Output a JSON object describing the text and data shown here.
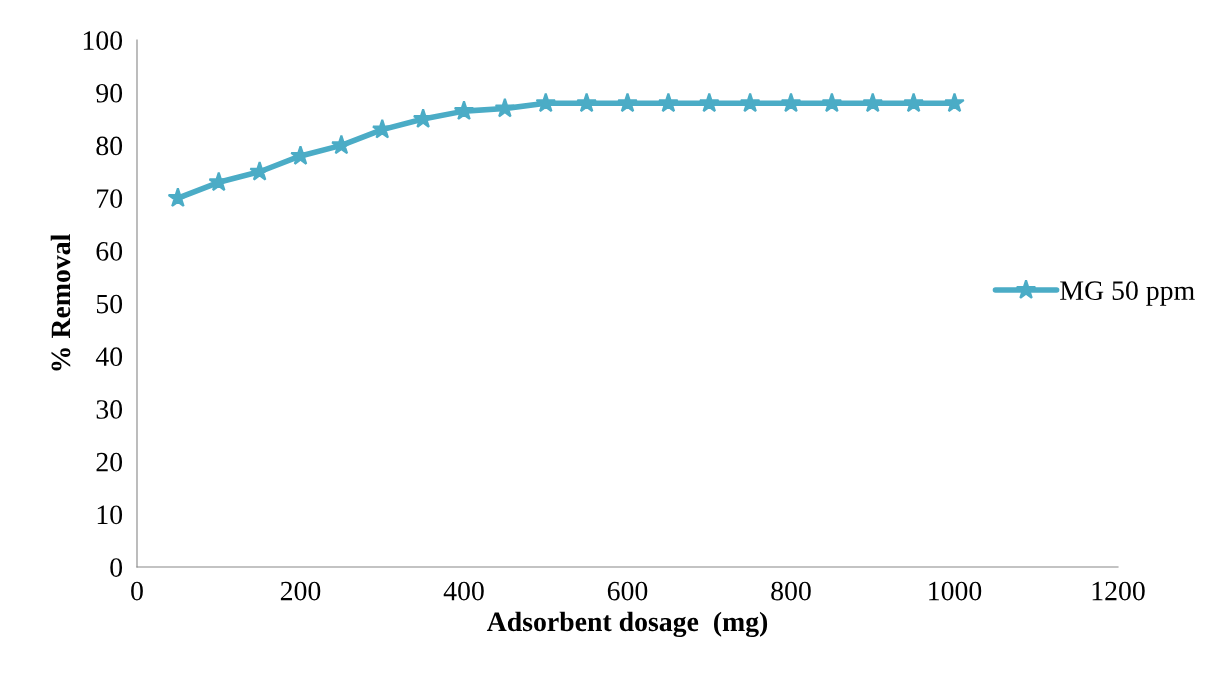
{
  "chart_data": {
    "type": "line",
    "xlabel": "Adsorbent dosage  (mg)",
    "ylabel": "% Removal",
    "x": [
      50,
      100,
      150,
      200,
      250,
      300,
      350,
      400,
      450,
      500,
      550,
      600,
      650,
      700,
      750,
      800,
      850,
      900,
      950,
      1000
    ],
    "series": [
      {
        "name": "MG 50 ppm",
        "color": "#4bacc6",
        "values": [
          70,
          73,
          75,
          78,
          80,
          83,
          85,
          86.5,
          87,
          88,
          88,
          88,
          88,
          88,
          88,
          88,
          88,
          88,
          88,
          88
        ]
      }
    ],
    "xlim": [
      0,
      1200
    ],
    "xticks": [
      0,
      200,
      400,
      600,
      800,
      1000,
      1200
    ],
    "ylim": [
      0,
      100
    ],
    "yticks": [
      0,
      10,
      20,
      30,
      40,
      50,
      60,
      70,
      80,
      90,
      100
    ],
    "grid": false,
    "legend": "right",
    "marker": "star",
    "line_style": "solid"
  }
}
